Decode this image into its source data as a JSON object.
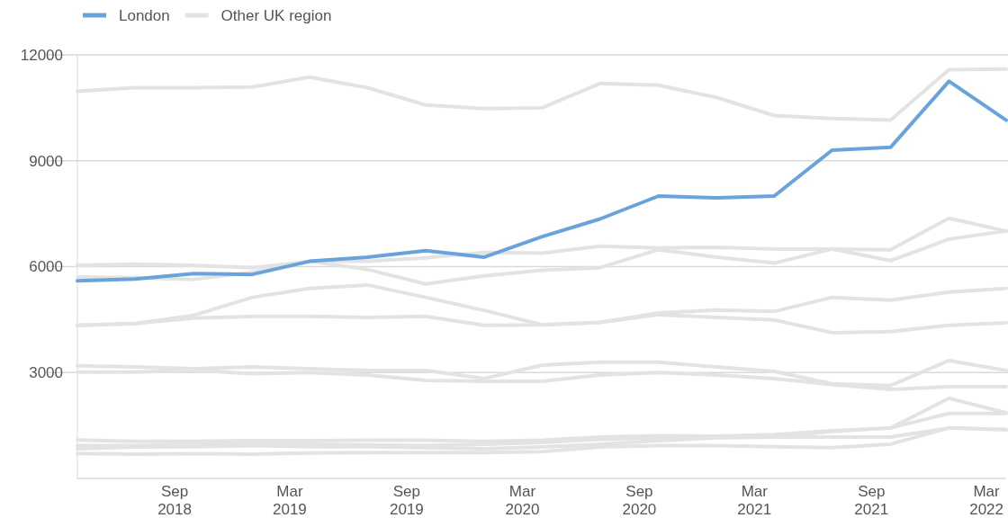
{
  "chart_data": {
    "type": "line",
    "x": [
      "2018-04",
      "2018-07",
      "2018-10",
      "2019-01",
      "2019-04",
      "2019-07",
      "2019-10",
      "2020-01",
      "2020-04",
      "2020-07",
      "2020-10",
      "2021-01",
      "2021-04",
      "2021-07",
      "2021-10",
      "2022-01",
      "2022-04"
    ],
    "series": [
      {
        "name": "Other UK region",
        "color": "#e3e3e3",
        "values": [
          10970,
          11070,
          11070,
          11090,
          11370,
          11070,
          10580,
          10480,
          10500,
          11190,
          11140,
          10790,
          10280,
          10200,
          10150,
          11580,
          11600
        ]
      },
      {
        "color": "#e3e3e3",
        "values": [
          6040,
          6070,
          6040,
          5970,
          6150,
          6150,
          6250,
          6400,
          6380,
          6580,
          6530,
          6550,
          6500,
          6500,
          6480,
          7370,
          7010
        ]
      },
      {
        "color": "#e3e3e3",
        "values": [
          5710,
          5690,
          5640,
          5840,
          6150,
          5920,
          5510,
          5740,
          5900,
          5970,
          6480,
          6270,
          6100,
          6500,
          6170,
          6780,
          7010
        ]
      },
      {
        "color": "#e3e3e3",
        "values": [
          4340,
          4390,
          4620,
          5130,
          5380,
          5480,
          5130,
          4760,
          4350,
          4420,
          4690,
          4770,
          4730,
          5130,
          5050,
          5280,
          5380
        ]
      },
      {
        "color": "#e3e3e3",
        "values": [
          4340,
          4390,
          4540,
          4590,
          4590,
          4560,
          4590,
          4340,
          4350,
          4420,
          4640,
          4560,
          4490,
          4130,
          4160,
          4340,
          4410
        ]
      },
      {
        "color": "#e3e3e3",
        "values": [
          3190,
          3160,
          3110,
          3160,
          3110,
          3060,
          3060,
          2830,
          3210,
          3290,
          3290,
          3160,
          3030,
          2680,
          2630,
          3340,
          3060
        ]
      },
      {
        "color": "#e3e3e3",
        "values": [
          3010,
          3010,
          3060,
          2970,
          3000,
          2930,
          2780,
          2750,
          2750,
          2930,
          3000,
          2930,
          2830,
          2660,
          2520,
          2600,
          2600
        ]
      },
      {
        "color": "#e3e3e3",
        "values": [
          1090,
          1050,
          1050,
          1070,
          1070,
          1080,
          1080,
          1050,
          1080,
          1170,
          1210,
          1200,
          1240,
          1350,
          1430,
          2270,
          1860
        ]
      },
      {
        "color": "#e3e3e3",
        "values": [
          840,
          890,
          900,
          930,
          900,
          900,
          870,
          840,
          890,
          970,
          1070,
          1150,
          1170,
          1330,
          1430,
          1840,
          1840
        ]
      },
      {
        "color": "#e3e3e3",
        "values": [
          930,
          930,
          970,
          1000,
          970,
          950,
          930,
          970,
          1020,
          1110,
          1150,
          1170,
          1170,
          1170,
          1170,
          1430,
          1380
        ]
      },
      {
        "color": "#e3e3e3",
        "values": [
          710,
          690,
          700,
          690,
          720,
          730,
          730,
          730,
          760,
          890,
          930,
          930,
          900,
          870,
          970,
          1430,
          1380
        ]
      },
      {
        "name": "London",
        "color": "#6aa3dc",
        "values": [
          5600,
          5650,
          5800,
          5780,
          6150,
          6270,
          6450,
          6270,
          6850,
          7350,
          8000,
          7950,
          8000,
          9300,
          9380,
          11250,
          10150
        ]
      }
    ],
    "xticks": [
      {
        "value": "2018-09",
        "label": "Sep 2018"
      },
      {
        "value": "2019-03",
        "label": "Mar 2019"
      },
      {
        "value": "2019-09",
        "label": "Sep 2019"
      },
      {
        "value": "2020-03",
        "label": "Mar 2020"
      },
      {
        "value": "2020-09",
        "label": "Sep 2020"
      },
      {
        "value": "2021-03",
        "label": "Mar 2021"
      },
      {
        "value": "2021-09",
        "label": "Sep 2021"
      },
      {
        "value": "2022-03",
        "label": "Mar 2022"
      }
    ],
    "xlim": [
      "2018-04",
      "2022-04"
    ],
    "ylim": [
      0,
      12000
    ],
    "yticks": [
      3000,
      6000,
      9000,
      12000
    ],
    "grid": "y",
    "legend": "top left",
    "line_style": "solid",
    "marker": "none"
  }
}
